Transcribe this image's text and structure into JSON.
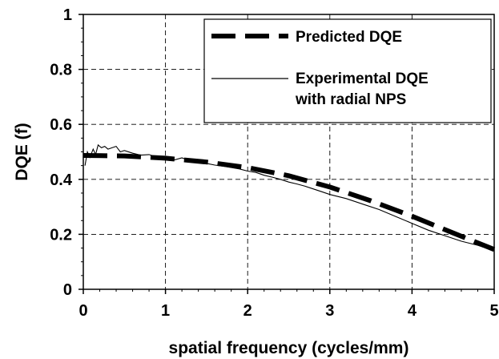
{
  "chart_data": {
    "type": "line",
    "xlabel": "spatial frequency (cycles/mm)",
    "ylabel": "DQE (f)",
    "xlim": [
      0,
      5
    ],
    "ylim": [
      0,
      1
    ],
    "x_ticks": [
      "0",
      "1",
      "2",
      "3",
      "4",
      "5"
    ],
    "y_ticks": [
      "0",
      "0.2",
      "0.4",
      "0.6",
      "0.8",
      "1"
    ],
    "grid": true,
    "legend_position": "top-right",
    "series": [
      {
        "name": "Predicted DQE",
        "style": "dashed-thick",
        "color": "#000000",
        "x": [
          0,
          0.5,
          1.0,
          1.5,
          2.0,
          2.5,
          3.0,
          3.5,
          4.0,
          4.5,
          5.0
        ],
        "y": [
          0.487,
          0.485,
          0.477,
          0.463,
          0.443,
          0.413,
          0.372,
          0.322,
          0.266,
          0.205,
          0.145
        ]
      },
      {
        "name": "Experimental DQE with radial NPS",
        "legend_lines": [
          "Experimental DQE",
          "with radial NPS"
        ],
        "style": "solid-thin",
        "color": "#000000",
        "x": [
          0.02,
          0.05,
          0.08,
          0.12,
          0.15,
          0.18,
          0.22,
          0.26,
          0.3,
          0.35,
          0.4,
          0.45,
          0.5,
          0.6,
          0.7,
          0.8,
          0.9,
          1.0,
          1.1,
          1.2,
          1.3,
          1.4,
          1.5,
          1.6,
          1.7,
          1.8,
          1.9,
          2.0,
          2.1,
          2.2,
          2.3,
          2.4,
          2.5,
          2.6,
          2.7,
          2.8,
          2.9,
          3.0,
          3.2,
          3.4,
          3.6,
          3.8,
          4.0,
          4.2,
          4.4,
          4.6,
          4.8,
          5.0
        ],
        "y": [
          0.45,
          0.5,
          0.48,
          0.51,
          0.49,
          0.525,
          0.515,
          0.52,
          0.51,
          0.515,
          0.52,
          0.5,
          0.505,
          0.495,
          0.488,
          0.49,
          0.48,
          0.475,
          0.47,
          0.478,
          0.468,
          0.462,
          0.458,
          0.452,
          0.448,
          0.443,
          0.438,
          0.43,
          0.425,
          0.415,
          0.408,
          0.4,
          0.39,
          0.383,
          0.375,
          0.365,
          0.355,
          0.345,
          0.33,
          0.31,
          0.29,
          0.265,
          0.24,
          0.215,
          0.195,
          0.175,
          0.16,
          0.14
        ]
      }
    ]
  }
}
